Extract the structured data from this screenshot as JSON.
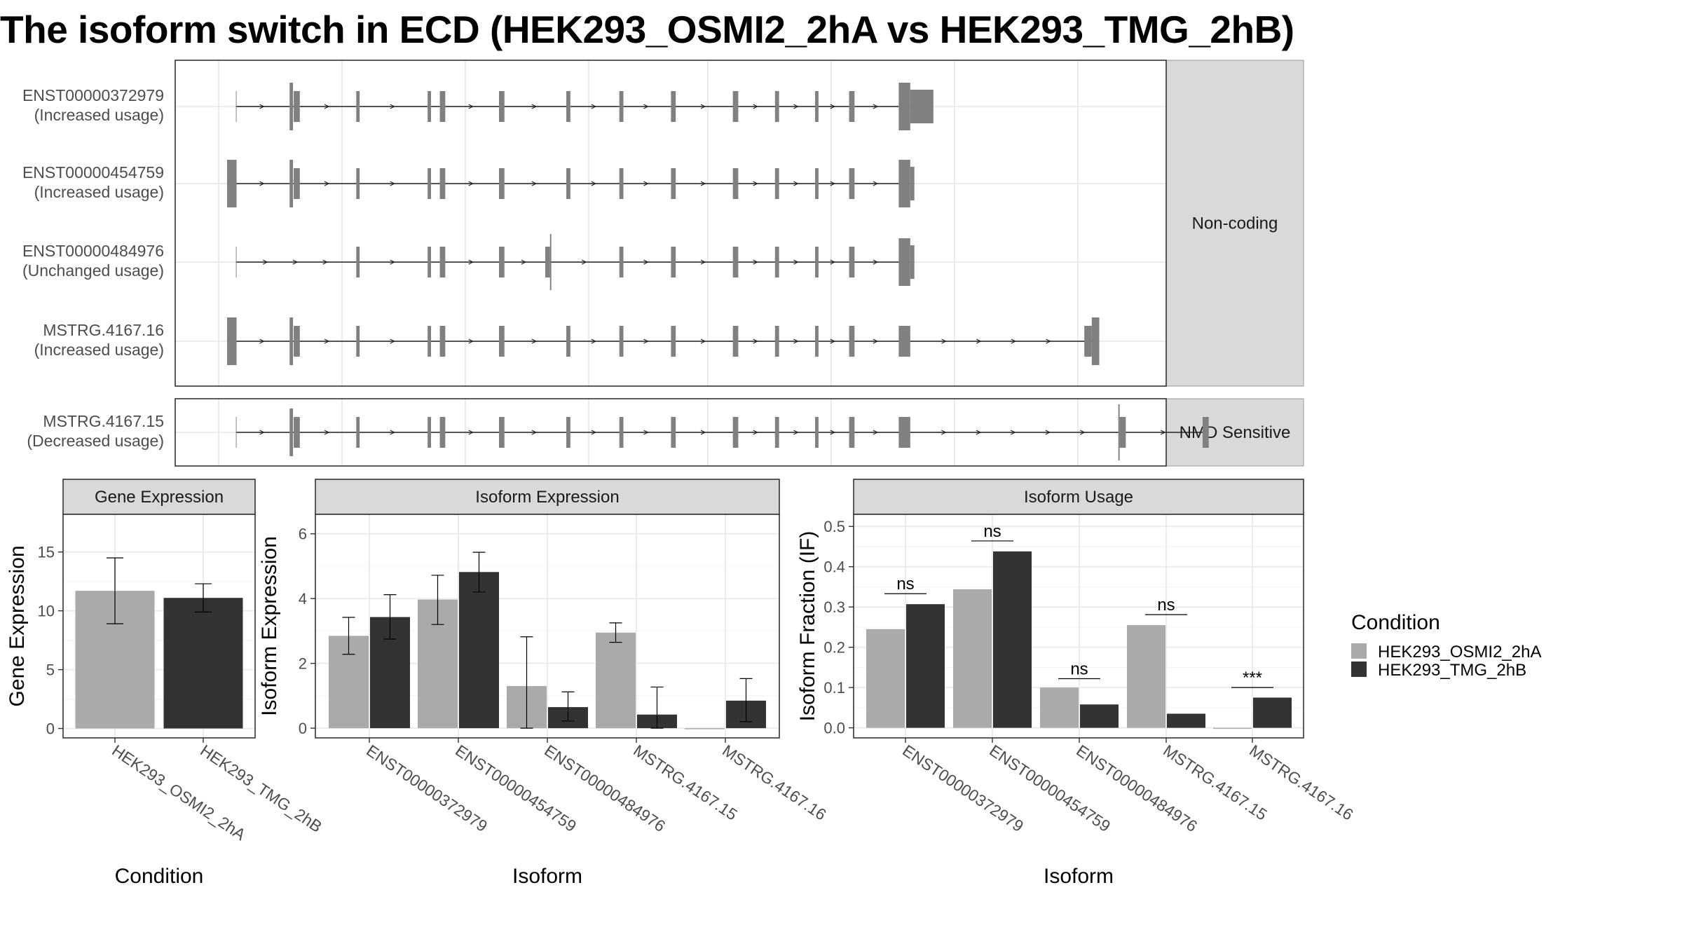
{
  "title": "The isoform switch in ECD (HEK293_OSMI2_2hA vs HEK293_TMG_2hB)",
  "colors": {
    "cond_a": "#aaaaaa",
    "cond_b": "#333333",
    "exon": "#808080",
    "grid": "#ebebeb",
    "strip": "#d9d9d9"
  },
  "transcripts": {
    "groups": [
      {
        "strip": "Non-coding",
        "tracks": [
          {
            "name": "ENST00000372979",
            "status": "(Increased usage)",
            "exons": [
              [
                13,
                14,
                0
              ],
              [
                92,
                97,
                1
              ],
              [
                98,
                107,
                0
              ],
              [
                190,
                195,
                0
              ],
              [
                295,
                300,
                0
              ],
              [
                313,
                321,
                0
              ],
              [
                400,
                408,
                0
              ],
              [
                499,
                505,
                0
              ],
              [
                577,
                583,
                0
              ],
              [
                653,
                660,
                0
              ],
              [
                744,
                752,
                0
              ],
              [
                806,
                812,
                0
              ],
              [
                865,
                870,
                0
              ],
              [
                915,
                923,
                0
              ],
              [
                988,
                1005,
                1
              ],
              [
                1005,
                1039,
                2
              ]
            ]
          },
          {
            "name": "ENST00000454759",
            "status": "(Increased usage)",
            "exons": [
              [
                0,
                14,
                1
              ],
              [
                92,
                97,
                1
              ],
              [
                98,
                107,
                0
              ],
              [
                190,
                195,
                0
              ],
              [
                295,
                300,
                0
              ],
              [
                313,
                321,
                0
              ],
              [
                400,
                408,
                0
              ],
              [
                499,
                505,
                0
              ],
              [
                577,
                583,
                0
              ],
              [
                653,
                660,
                0
              ],
              [
                744,
                752,
                0
              ],
              [
                806,
                812,
                0
              ],
              [
                865,
                870,
                0
              ],
              [
                915,
                923,
                0
              ],
              [
                988,
                1005,
                1
              ],
              [
                1005,
                1011,
                2
              ]
            ]
          },
          {
            "name": "ENST00000484976",
            "status": "(Unchanged usage)",
            "exons": [
              [
                13,
                14,
                0
              ],
              [
                190,
                195,
                0
              ],
              [
                295,
                300,
                0
              ],
              [
                313,
                321,
                0
              ],
              [
                400,
                408,
                0
              ],
              [
                468,
                475,
                0
              ],
              [
                475,
                477,
                3
              ],
              [
                577,
                583,
                0
              ],
              [
                653,
                660,
                0
              ],
              [
                744,
                752,
                0
              ],
              [
                806,
                812,
                0
              ],
              [
                865,
                870,
                0
              ],
              [
                915,
                923,
                0
              ],
              [
                988,
                1005,
                1
              ],
              [
                1005,
                1011,
                2
              ]
            ]
          },
          {
            "name": "MSTRG.4167.16",
            "status": "(Increased usage)",
            "exons": [
              [
                0,
                14,
                1
              ],
              [
                92,
                97,
                1
              ],
              [
                98,
                107,
                0
              ],
              [
                190,
                195,
                0
              ],
              [
                295,
                300,
                0
              ],
              [
                313,
                321,
                0
              ],
              [
                400,
                408,
                0
              ],
              [
                499,
                505,
                0
              ],
              [
                577,
                583,
                0
              ],
              [
                653,
                660,
                0
              ],
              [
                744,
                752,
                0
              ],
              [
                806,
                812,
                0
              ],
              [
                865,
                870,
                0
              ],
              [
                915,
                923,
                0
              ],
              [
                988,
                1005,
                0
              ],
              [
                1261,
                1272,
                0
              ],
              [
                1272,
                1283,
                1
              ]
            ]
          }
        ]
      },
      {
        "strip": "NMD Sensitive",
        "tracks": [
          {
            "name": "MSTRG.4167.15",
            "status": "(Decreased usage)",
            "exons": [
              [
                13,
                14,
                0
              ],
              [
                92,
                97,
                1
              ],
              [
                98,
                107,
                0
              ],
              [
                190,
                195,
                0
              ],
              [
                295,
                300,
                0
              ],
              [
                313,
                321,
                0
              ],
              [
                400,
                408,
                0
              ],
              [
                499,
                505,
                0
              ],
              [
                577,
                583,
                0
              ],
              [
                653,
                660,
                0
              ],
              [
                744,
                752,
                0
              ],
              [
                806,
                812,
                0
              ],
              [
                865,
                870,
                0
              ],
              [
                915,
                923,
                0
              ],
              [
                988,
                1005,
                0
              ],
              [
                1311,
                1313,
                3
              ],
              [
                1313,
                1322,
                0
              ],
              [
                1435,
                1444,
                0
              ]
            ]
          }
        ]
      }
    ]
  },
  "panels": {
    "gene": {
      "strip": "Gene Expression",
      "ylabel": "Gene Expression",
      "xlabel": "Condition",
      "yticks": [
        0,
        5,
        10,
        15
      ],
      "ylim": [
        -0.8,
        18.2
      ]
    },
    "iso_exp": {
      "strip": "Isoform Expression",
      "ylabel": "Isoform Expression",
      "xlabel": "Isoform",
      "yticks": [
        0,
        2,
        4,
        6
      ],
      "ylim": [
        -0.3,
        6.6
      ]
    },
    "usage": {
      "strip": "Isoform Usage",
      "ylabel": "Isoform Fraction (IF)",
      "xlabel": "Isoform",
      "yticks": [
        0.0,
        0.1,
        0.2,
        0.3,
        0.4,
        0.5
      ],
      "ytick_labels": [
        "0.0",
        "0.1",
        "0.2",
        "0.3",
        "0.4",
        "0.5"
      ],
      "ylim": [
        -0.025,
        0.53
      ]
    }
  },
  "legend": {
    "title": "Condition",
    "items": [
      {
        "label": "HEK293_OSMI2_2hA",
        "color": "#aaaaaa"
      },
      {
        "label": "HEK293_TMG_2hB",
        "color": "#333333"
      }
    ]
  },
  "chart_data": [
    {
      "type": "bar",
      "title": "Gene Expression",
      "xlabel": "Condition",
      "ylabel": "Gene Expression",
      "categories": [
        "HEK293_OSMI2_2hA",
        "HEK293_TMG_2hB"
      ],
      "values": [
        11.7,
        11.1
      ],
      "error": [
        [
          8.9,
          14.5
        ],
        [
          9.9,
          12.3
        ]
      ],
      "ylim": [
        -0.8,
        18.2
      ],
      "grid": true
    },
    {
      "type": "bar",
      "title": "Isoform Expression",
      "xlabel": "Isoform",
      "ylabel": "Isoform Expression",
      "categories": [
        "ENST00000372979",
        "ENST00000454759",
        "ENST00000484976",
        "MSTRG.4167.15",
        "MSTRG.4167.16"
      ],
      "series": [
        {
          "name": "HEK293_OSMI2_2hA",
          "values": [
            2.85,
            3.97,
            1.3,
            2.95,
            0.0
          ],
          "error": [
            [
              2.28,
              3.42
            ],
            [
              3.2,
              4.72
            ],
            [
              0.0,
              2.82
            ],
            [
              2.65,
              3.25
            ],
            [
              0.0,
              0.0
            ]
          ]
        },
        {
          "name": "HEK293_TMG_2hB",
          "values": [
            3.43,
            4.82,
            0.65,
            0.42,
            0.85
          ],
          "error": [
            [
              2.75,
              4.12
            ],
            [
              4.2,
              5.43
            ],
            [
              0.22,
              1.12
            ],
            [
              0.0,
              1.27
            ],
            [
              0.2,
              1.53
            ]
          ]
        }
      ],
      "ylim": [
        -0.3,
        6.6
      ],
      "grid": true
    },
    {
      "type": "bar",
      "title": "Isoform Usage",
      "xlabel": "Isoform",
      "ylabel": "Isoform Fraction (IF)",
      "categories": [
        "ENST00000372979",
        "ENST00000454759",
        "ENST00000484976",
        "MSTRG.4167.15",
        "MSTRG.4167.16"
      ],
      "series": [
        {
          "name": "HEK293_OSMI2_2hA",
          "values": [
            0.245,
            0.344,
            0.1,
            0.255,
            0.0
          ]
        },
        {
          "name": "HEK293_TMG_2hB",
          "values": [
            0.307,
            0.438,
            0.058,
            0.035,
            0.075
          ]
        }
      ],
      "annotations": [
        {
          "category": "ENST00000372979",
          "text": "ns",
          "y": 0.333
        },
        {
          "category": "ENST00000454759",
          "text": "ns",
          "y": 0.464
        },
        {
          "category": "ENST00000484976",
          "text": "ns",
          "y": 0.122
        },
        {
          "category": "MSTRG.4167.15",
          "text": "ns",
          "y": 0.281
        },
        {
          "category": "MSTRG.4167.16",
          "text": "***",
          "y": 0.1
        }
      ],
      "ylim": [
        -0.025,
        0.53
      ],
      "grid": true
    }
  ]
}
